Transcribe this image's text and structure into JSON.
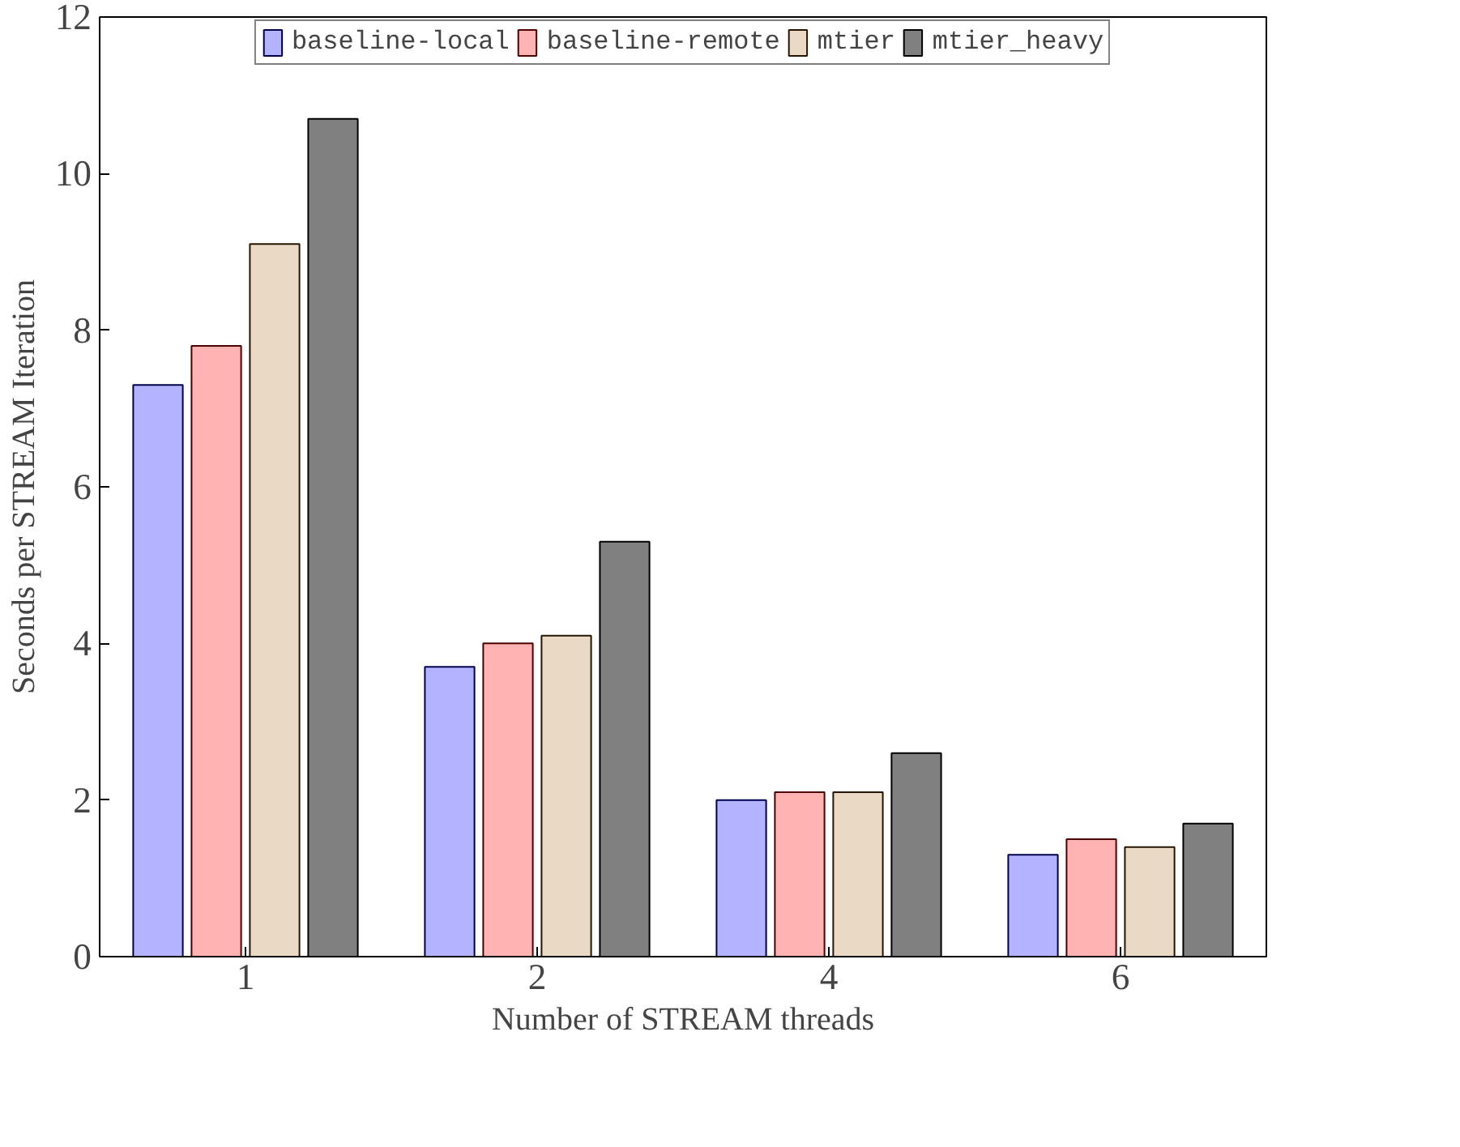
{
  "chart_data": {
    "type": "bar",
    "xlabel": "Number of STREAM threads",
    "ylabel": "Seconds per STREAM Iteration",
    "categories": [
      "1",
      "2",
      "4",
      "6"
    ],
    "series": [
      {
        "name": "baseline-local",
        "color": "#b3b3ff",
        "values": [
          7.3,
          3.7,
          2.0,
          1.3
        ]
      },
      {
        "name": "baseline-remote",
        "color": "#ffb3b3",
        "values": [
          7.8,
          4.0,
          2.1,
          1.5
        ]
      },
      {
        "name": "mtier",
        "color": "#ead9c4",
        "values": [
          9.1,
          4.1,
          2.1,
          1.4
        ]
      },
      {
        "name": "mtier_heavy",
        "color": "#808080",
        "values": [
          10.7,
          5.3,
          2.6,
          1.7
        ]
      }
    ],
    "ylim": [
      0,
      12
    ],
    "yticks": [
      0,
      2,
      4,
      6,
      8,
      10,
      12
    ],
    "grid": false,
    "legend": "top"
  }
}
